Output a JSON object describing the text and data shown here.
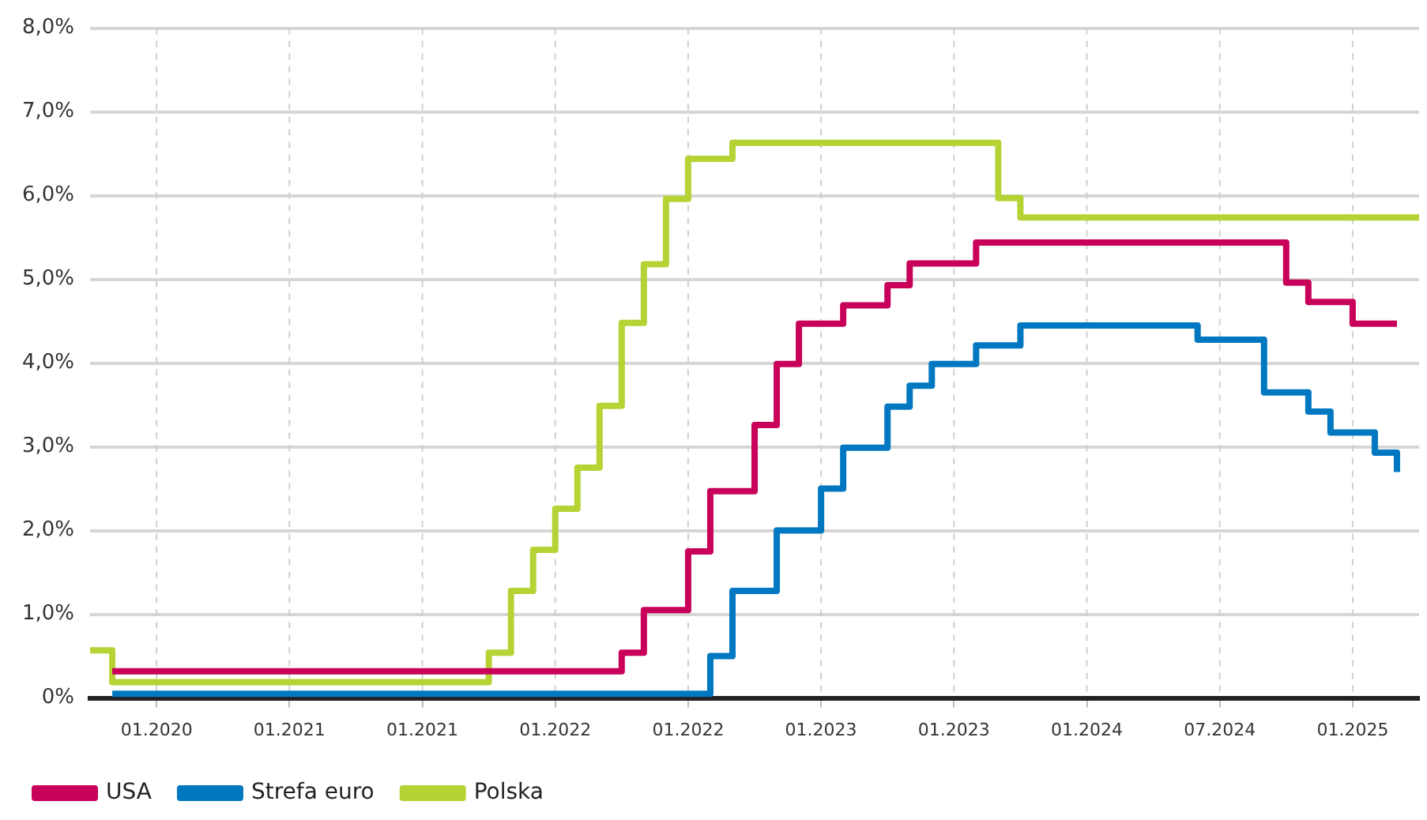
{
  "chart_data": {
    "type": "step",
    "categories": [
      null,
      null,
      null,
      "01.2020",
      null,
      null,
      null,
      null,
      null,
      "01.2021",
      null,
      null,
      null,
      null,
      null,
      "01.2021",
      null,
      null,
      null,
      null,
      null,
      "01.2022",
      null,
      null,
      null,
      null,
      null,
      "01.2022",
      null,
      null,
      null,
      null,
      null,
      "01.2023",
      null,
      null,
      null,
      null,
      null,
      "01.2023",
      null,
      null,
      null,
      null,
      null,
      "01.2024",
      null,
      null,
      null,
      null,
      null,
      "07.2024",
      null,
      null,
      null,
      null,
      null,
      "01.2025",
      null,
      null,
      null
    ],
    "ylim": [
      0,
      8
    ],
    "yticks": [
      {
        "value": 0,
        "label": "0%"
      },
      {
        "value": 1,
        "label": "1,0%"
      },
      {
        "value": 2,
        "label": "2,0%"
      },
      {
        "value": 3,
        "label": "3,0%"
      },
      {
        "value": 4,
        "label": "4,0%"
      },
      {
        "value": 5,
        "label": "5,0%"
      },
      {
        "value": 6,
        "label": "6,0%"
      },
      {
        "value": 7,
        "label": "7,0%"
      },
      {
        "value": 8,
        "label": "8,0%"
      }
    ],
    "grid": true,
    "legend": "bottom left",
    "marker": "none",
    "line_style": "solid",
    "series": [
      {
        "name": "USA",
        "color": "#c8005a",
        "values": [
          null,
          0.32,
          0.32,
          0.32,
          0.32,
          0.32,
          0.32,
          0.32,
          0.32,
          0.32,
          0.32,
          0.32,
          0.32,
          0.32,
          0.32,
          0.32,
          0.32,
          0.32,
          0.32,
          0.32,
          0.32,
          0.32,
          0.32,
          0.32,
          0.54,
          1.05,
          1.05,
          1.75,
          2.47,
          2.47,
          3.26,
          3.99,
          4.47,
          4.47,
          4.69,
          4.69,
          4.93,
          5.19,
          5.19,
          5.19,
          5.44,
          5.44,
          5.44,
          5.44,
          5.44,
          5.44,
          5.44,
          5.44,
          5.44,
          5.44,
          5.44,
          5.44,
          5.44,
          5.44,
          4.96,
          4.73,
          4.73,
          4.47,
          4.47,
          4.47,
          null
        ]
      },
      {
        "name": "Strefa euro",
        "color": "#0078c1",
        "values": [
          null,
          0.05,
          0.05,
          0.05,
          0.05,
          0.05,
          0.05,
          0.05,
          0.05,
          0.05,
          0.05,
          0.05,
          0.05,
          0.05,
          0.05,
          0.05,
          0.05,
          0.05,
          0.05,
          0.05,
          0.05,
          0.05,
          0.05,
          0.05,
          0.05,
          0.05,
          0.05,
          0.05,
          0.5,
          1.28,
          1.28,
          2.0,
          2.0,
          2.5,
          2.99,
          2.99,
          3.48,
          3.73,
          3.99,
          3.99,
          4.21,
          4.21,
          4.45,
          4.45,
          4.45,
          4.45,
          4.45,
          4.45,
          4.45,
          4.45,
          4.28,
          4.28,
          4.28,
          3.65,
          3.65,
          3.42,
          3.17,
          3.17,
          2.93,
          2.7,
          null
        ]
      },
      {
        "name": "Polska",
        "color": "#b5d334",
        "values": [
          0.57,
          0.19,
          0.19,
          0.19,
          0.19,
          0.19,
          0.19,
          0.19,
          0.19,
          0.19,
          0.19,
          0.19,
          0.19,
          0.19,
          0.19,
          0.19,
          0.19,
          0.19,
          0.54,
          1.28,
          1.77,
          2.26,
          2.75,
          3.49,
          4.48,
          5.18,
          5.96,
          6.44,
          6.44,
          6.63,
          6.63,
          6.63,
          6.63,
          6.63,
          6.63,
          6.63,
          6.63,
          6.63,
          6.63,
          6.63,
          6.63,
          5.97,
          5.74,
          5.74,
          5.74,
          5.74,
          5.74,
          5.74,
          5.74,
          5.74,
          5.74,
          5.74,
          5.74,
          5.74,
          5.74,
          5.74,
          5.74,
          5.74,
          5.74,
          5.74,
          5.74
        ]
      }
    ]
  }
}
